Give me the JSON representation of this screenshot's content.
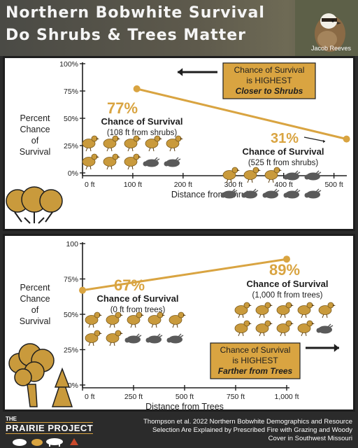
{
  "header": {
    "title_line1": "Northern Bobwhite Survival",
    "title_line2": "Do Shrubs & Trees Matter",
    "photo_credit": "Jacob Reeves"
  },
  "colors": {
    "gold": "#d9a441",
    "gold_dark": "#a87820",
    "bird_gold": "#c99a3c",
    "bird_gray": "#5a5a5a",
    "callout_fill": "#d9a441",
    "text_dark": "#1e1e1e",
    "header_bg": "#4f4c42"
  },
  "icons": [
    "arrow-left-icon",
    "arrow-right-icon",
    "shrubs-icon",
    "trees-icon",
    "quail-icon"
  ],
  "chart_data": [
    {
      "type": "line",
      "title": "",
      "xlabel": "Distance from Shrubs",
      "ylabel": "Percent Chance of Survival",
      "ylabel_lines": [
        "Percent",
        "Chance",
        "of",
        "Survival"
      ],
      "x_ticks": [
        0,
        100,
        200,
        300,
        400,
        500
      ],
      "x_tick_labels": [
        "0 ft",
        "100 ft",
        "200 ft",
        "300 ft",
        "400 ft",
        "500 ft"
      ],
      "y_ticks": [
        0,
        25,
        50,
        75,
        100
      ],
      "y_tick_labels": [
        "0%",
        "25%",
        "50%",
        "75%",
        "100%"
      ],
      "xlim": [
        0,
        520
      ],
      "ylim": [
        0,
        100
      ],
      "series": [
        {
          "x": [
            108,
            525
          ],
          "y": [
            77,
            31
          ]
        }
      ],
      "points": [
        {
          "x": 108,
          "y": 77,
          "percent": "77%",
          "label": "Chance of Survival",
          "sub": "(108 ft from shrubs)",
          "alive": 8,
          "dead": 2
        },
        {
          "x": 525,
          "y": 31,
          "percent": "31%",
          "label": "Chance of Survival",
          "sub": "(525 ft from shrubs)",
          "alive": 3,
          "dead": 7
        }
      ],
      "callout": {
        "line1": "Chance of Survival",
        "line2": "is HIGHEST",
        "line3": "Closer to Shrubs",
        "arrow": "left"
      }
    },
    {
      "type": "line",
      "title": "",
      "xlabel": "Distance from Trees",
      "ylabel": "Percent Chance of Survival",
      "ylabel_lines": [
        "Percent",
        "Chance",
        "of",
        "Survival"
      ],
      "x_ticks": [
        0,
        250,
        500,
        750,
        1000
      ],
      "x_tick_labels": [
        "0 ft",
        "250 ft",
        "500 ft",
        "750 ft",
        "1,000 ft"
      ],
      "y_ticks": [
        0,
        25,
        50,
        75,
        100
      ],
      "y_tick_labels": [
        "0%",
        "25%",
        "50%",
        "75%",
        "100"
      ],
      "xlim": [
        0,
        1000
      ],
      "ylim": [
        0,
        100
      ],
      "series": [
        {
          "x": [
            0,
            1000
          ],
          "y": [
            67,
            89
          ]
        }
      ],
      "points": [
        {
          "x": 0,
          "y": 67,
          "percent": "67%",
          "label": "Chance of Survival",
          "sub": "(0 ft from trees)",
          "alive": 7,
          "dead": 3
        },
        {
          "x": 1000,
          "y": 89,
          "percent": "89%",
          "label": "Chance of Survival",
          "sub": "(1,000 ft from trees)",
          "alive": 9,
          "dead": 1
        }
      ],
      "callout": {
        "line1": "Chance of Survival",
        "line2": "is HIGHEST",
        "line3": "Farther from Trees",
        "arrow": "right"
      }
    }
  ],
  "footer": {
    "brand_small": "THE",
    "brand": "PRAIRIE PROJECT",
    "citation": "Thompson et al. 2022 Northern Bobwhite Demographics and Resource Selection Are Explained by Prescribed Fire with Grazing and Woody Cover in Southwest Missouri"
  }
}
